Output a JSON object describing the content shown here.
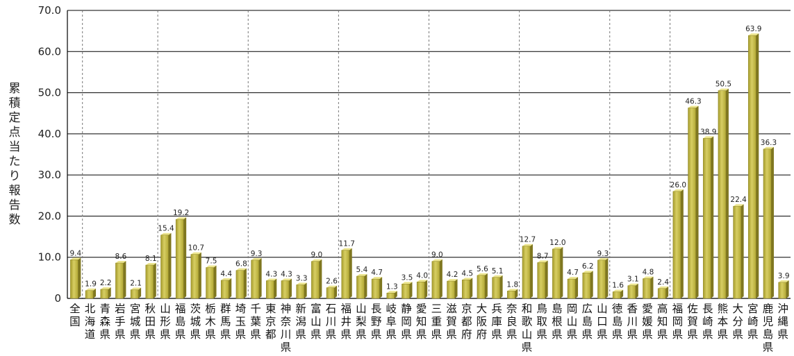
{
  "chart_data": {
    "type": "bar",
    "title": "",
    "xlabel": "",
    "ylabel": "累積定点当たり報告数",
    "ylim": [
      0,
      70
    ],
    "yticks": [
      "0",
      "10.0",
      "20.0",
      "30.0",
      "40.0",
      "50.0",
      "60.0",
      "70.0"
    ],
    "grid": true,
    "bar_color": "#c8bf4a",
    "categories": [
      "全国",
      "北海道",
      "青森県",
      "岩手県",
      "宮城県",
      "秋田県",
      "山形県",
      "福島県",
      "茨城県",
      "栃木県",
      "群馬県",
      "埼玉県",
      "千葉県",
      "東京都",
      "神奈川県",
      "新潟県",
      "富山県",
      "石川県",
      "福井県",
      "山梨県",
      "長野県",
      "岐阜県",
      "静岡県",
      "愛知県",
      "三重県",
      "滋賀県",
      "京都府",
      "大阪府",
      "兵庫県",
      "奈良県",
      "和歌山県",
      "鳥取県",
      "島根県",
      "岡山県",
      "広島県",
      "山口県",
      "徳島県",
      "香川県",
      "愛媛県",
      "高知県",
      "福岡県",
      "佐賀県",
      "長崎県",
      "熊本県",
      "大分県",
      "宮崎県",
      "鹿児島県",
      "沖縄県"
    ],
    "values": [
      9.4,
      1.9,
      2.2,
      8.6,
      2.1,
      8.1,
      15.4,
      19.2,
      10.7,
      7.5,
      4.4,
      6.8,
      9.3,
      4.3,
      4.3,
      3.3,
      9.0,
      2.6,
      11.7,
      5.4,
      4.7,
      1.3,
      3.5,
      4.0,
      9.0,
      4.2,
      4.5,
      5.6,
      5.1,
      1.8,
      12.7,
      8.7,
      12.0,
      4.7,
      6.2,
      9.3,
      1.6,
      3.1,
      4.8,
      2.4,
      26.0,
      46.3,
      38.9,
      50.5,
      22.4,
      63.9,
      36.3,
      3.9
    ],
    "value_labels": [
      "9.4",
      "1.9",
      "2.2",
      "8.6",
      "2.1",
      "8.1",
      "15.4",
      "19.2",
      "10.7",
      "7.5",
      "4.4",
      "6.8",
      "9.3",
      "4.3",
      "4.3",
      "3.3",
      "9.0",
      "2.6",
      "11.7",
      "5.4",
      "4.7",
      "1.3",
      "3.5",
      "4.0",
      "9.0",
      "4.2",
      "4.5",
      "5.6",
      "5.1",
      "1.8",
      "12.7",
      "8.7",
      "12.0",
      "4.7",
      "6.2",
      "9.3",
      "1.6",
      "3.1",
      "4.8",
      "2.4",
      "26.0",
      "46.3",
      "38.9",
      "50.5",
      "22.4",
      "63.9",
      "36.3",
      "3.9"
    ],
    "region_separators_after": [
      "全国",
      "秋田県",
      "埼玉県",
      "石川県",
      "愛知県",
      "奈良県",
      "山口県",
      "高知県"
    ]
  }
}
